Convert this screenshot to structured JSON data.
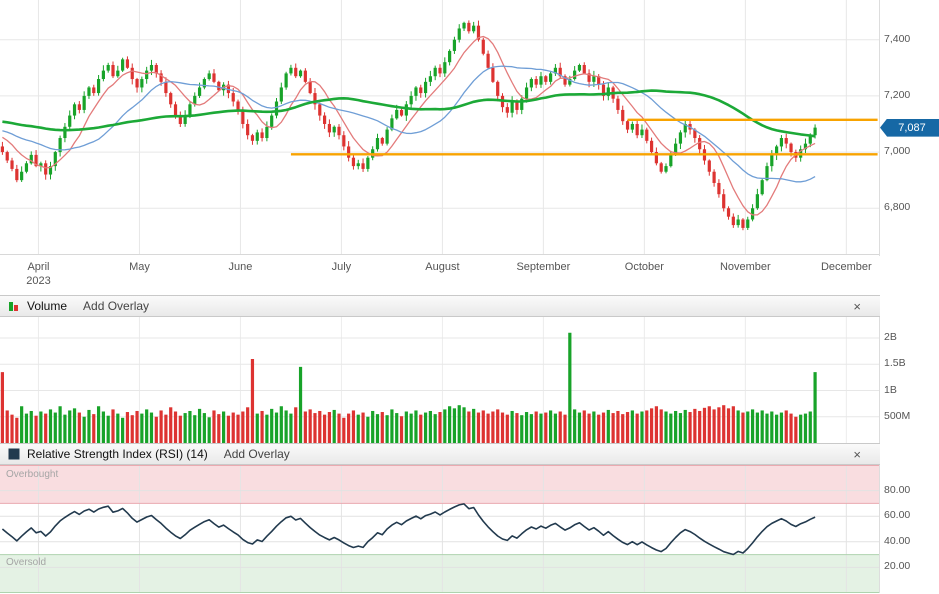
{
  "chart_data": [
    {
      "type": "candlestick",
      "name": "price",
      "ylim": [
        6630,
        7520
      ],
      "y_ticks": [
        7400,
        7200,
        7000,
        6800
      ],
      "y_tick_labels": [
        "7,400",
        "7,200",
        "7,000",
        "6,800"
      ],
      "x_month_labels": [
        "April",
        "May",
        "June",
        "July",
        "August",
        "September",
        "October",
        "November",
        "December"
      ],
      "x_year_sublabel": "2023",
      "layout": {
        "lead_candles": 8,
        "candles_per_month": 21,
        "total_slots": 183
      },
      "closes": [
        7000,
        6970,
        6940,
        6900,
        6930,
        6960,
        6990,
        6950,
        6960,
        6920,
        6950,
        7000,
        7050,
        7090,
        7130,
        7170,
        7150,
        7200,
        7230,
        7210,
        7260,
        7290,
        7310,
        7270,
        7290,
        7330,
        7300,
        7260,
        7230,
        7260,
        7290,
        7310,
        7280,
        7250,
        7210,
        7170,
        7130,
        7100,
        7130,
        7170,
        7200,
        7230,
        7260,
        7280,
        7250,
        7220,
        7240,
        7210,
        7180,
        7150,
        7100,
        7060,
        7040,
        7070,
        7050,
        7090,
        7130,
        7180,
        7230,
        7280,
        7300,
        7270,
        7290,
        7250,
        7210,
        7170,
        7130,
        7100,
        7070,
        7090,
        7060,
        7020,
        6980,
        6950,
        6960,
        6940,
        6980,
        7010,
        7050,
        7030,
        7080,
        7120,
        7150,
        7130,
        7170,
        7200,
        7230,
        7210,
        7250,
        7270,
        7300,
        7280,
        7320,
        7360,
        7400,
        7440,
        7460,
        7430,
        7450,
        7400,
        7350,
        7300,
        7250,
        7200,
        7160,
        7140,
        7180,
        7150,
        7190,
        7230,
        7260,
        7240,
        7270,
        7250,
        7280,
        7300,
        7270,
        7240,
        7260,
        7290,
        7310,
        7280,
        7250,
        7270,
        7240,
        7200,
        7230,
        7190,
        7150,
        7110,
        7080,
        7100,
        7060,
        7080,
        7040,
        7000,
        6960,
        6930,
        6950,
        6990,
        7030,
        7070,
        7100,
        7080,
        7050,
        7010,
        6970,
        6930,
        6890,
        6850,
        6800,
        6770,
        6740,
        6760,
        6730,
        6760,
        6800,
        6850,
        6900,
        6950,
        6990,
        7020,
        7050,
        7030,
        7000,
        6980,
        7010,
        7030,
        7060,
        7087
      ],
      "last_price": 7087,
      "last_price_label": "7,087",
      "colors": {
        "up": "#18a329",
        "down": "#dd3331",
        "badge": "#1668a5"
      },
      "moving_averages": [
        {
          "name": "short-ma",
          "window": 8,
          "color": "#e37b7b",
          "width": 1.3,
          "seed": 7060
        },
        {
          "name": "mid-ma",
          "window": 21,
          "color": "#6f9ed6",
          "width": 1.3,
          "seed": 7080
        },
        {
          "name": "long-ma",
          "window": 60,
          "color": "#1ca937",
          "width": 2.6,
          "seed": 7110
        }
      ],
      "trend_lines": [
        {
          "value": 7115,
          "start_slot": 130,
          "end_slot": 182,
          "color": "#f8a300"
        },
        {
          "value": 6992,
          "start_slot": 60,
          "end_slot": 182,
          "color": "#f8a300"
        }
      ]
    },
    {
      "type": "bar",
      "name": "Volume",
      "title": "Volume",
      "add_overlay_label": "Add Overlay",
      "close_label": "×",
      "ylim": [
        0,
        2400
      ],
      "y_ticks": [
        2000,
        1500,
        1000,
        500
      ],
      "y_tick_labels": [
        "2B",
        "1.5B",
        "1B",
        "500M"
      ],
      "values": [
        1350,
        620,
        540,
        480,
        700,
        560,
        610,
        520,
        600,
        560,
        640,
        580,
        700,
        540,
        620,
        660,
        580,
        500,
        630,
        550,
        700,
        600,
        520,
        640,
        560,
        480,
        590,
        530,
        610,
        560,
        640,
        580,
        500,
        620,
        540,
        680,
        600,
        520,
        570,
        610,
        530,
        650,
        570,
        490,
        620,
        550,
        600,
        520,
        580,
        540,
        600,
        680,
        1600,
        560,
        610,
        540,
        650,
        580,
        700,
        620,
        560,
        680,
        1450,
        600,
        640,
        570,
        610,
        540,
        590,
        630,
        560,
        480,
        560,
        620,
        540,
        580,
        500,
        610,
        550,
        590,
        530,
        640,
        570,
        510,
        600,
        560,
        620,
        540,
        580,
        610,
        550,
        590,
        640,
        700,
        660,
        720,
        680,
        600,
        650,
        580,
        620,
        560,
        600,
        640,
        580,
        540,
        610,
        570,
        530,
        590,
        550,
        600,
        560,
        580,
        620,
        560,
        600,
        540,
        2100,
        640,
        580,
        620,
        560,
        600,
        540,
        580,
        630,
        570,
        610,
        550,
        590,
        620,
        560,
        600,
        620,
        660,
        700,
        640,
        600,
        560,
        610,
        570,
        630,
        590,
        650,
        610,
        670,
        700,
        640,
        680,
        720,
        660,
        700,
        620,
        580,
        600,
        640,
        580,
        620,
        560,
        600,
        540,
        580,
        620,
        560,
        500,
        540,
        560,
        600,
        1350
      ]
    },
    {
      "type": "line",
      "name": "RSI",
      "title": "Relative Strength Index (RSI) (14)",
      "add_overlay_label": "Add Overlay",
      "close_label": "×",
      "period": 14,
      "ylim": [
        0,
        100
      ],
      "y_ticks": [
        80,
        60,
        40,
        20
      ],
      "y_tick_labels": [
        "80.00",
        "60.00",
        "40.00",
        "20.00"
      ],
      "line_color": "#223a4e",
      "bands": {
        "overbought": {
          "label": "Overbought",
          "from": 70,
          "to": 100,
          "fill": "#f9dde0",
          "edge": "#eaaab0"
        },
        "oversold": {
          "label": "Oversold",
          "from": 0,
          "to": 30,
          "fill": "#e4f2e4",
          "edge": "#aed3ae"
        }
      }
    }
  ]
}
